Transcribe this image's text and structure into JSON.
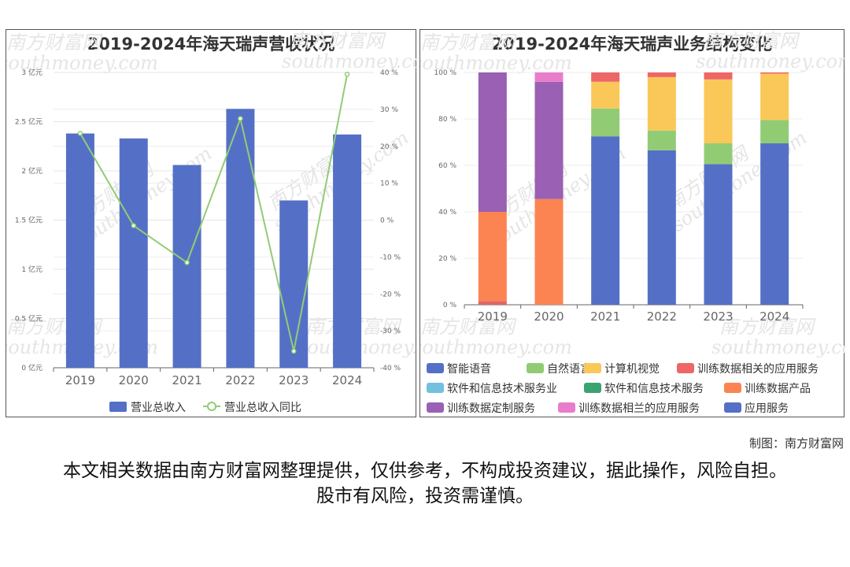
{
  "watermark": {
    "text": "南方财富网",
    "subtext": "southmoney.com"
  },
  "chart_data": [
    {
      "type": "bar+line",
      "title": "2019-2024年海天瑞声营收状况",
      "categories": [
        "2019",
        "2020",
        "2021",
        "2022",
        "2023",
        "2024"
      ],
      "series": [
        {
          "name": "营业总收入",
          "type": "bar",
          "axis": "left",
          "color": "#5470c6",
          "values": [
            2.38,
            2.33,
            2.06,
            2.63,
            1.7,
            2.37
          ]
        },
        {
          "name": "营业总收入同比",
          "type": "line",
          "axis": "right",
          "color": "#91cc75",
          "values": [
            23.5,
            -1.5,
            -11.5,
            27.5,
            -35.5,
            39.5
          ]
        }
      ],
      "left_axis": {
        "min": 0,
        "max": 3,
        "ticks": [
          "0 亿元",
          "0.5 亿元",
          "1 亿元",
          "1.5 亿元",
          "2 亿元",
          "2.5 亿元",
          "3 亿元"
        ]
      },
      "right_axis": {
        "min": -40,
        "max": 40,
        "ticks": [
          "-40 %",
          "-30 %",
          "-20 %",
          "-10 %",
          "0 %",
          "10 %",
          "20 %",
          "30 %",
          "40 %"
        ]
      },
      "legend_position": "bottom"
    },
    {
      "type": "stacked-bar",
      "title": "2019-2024年海天瑞声业务结构变化",
      "categories": [
        "2019",
        "2020",
        "2021",
        "2022",
        "2023",
        "2024"
      ],
      "y_axis": {
        "min": 0,
        "max": 100,
        "ticks": [
          "0 %",
          "20 %",
          "40 %",
          "60 %",
          "80 %",
          "100 %"
        ]
      },
      "series": [
        {
          "name": "智能语音",
          "color": "#5470c6",
          "values": [
            0,
            0,
            72.5,
            66.5,
            60.5,
            69.5
          ]
        },
        {
          "name": "自然语言",
          "color": "#91cc75",
          "values": [
            0,
            0,
            12,
            8.5,
            9,
            10
          ]
        },
        {
          "name": "计算机视觉",
          "color": "#fac858",
          "values": [
            0,
            0,
            11.5,
            23,
            27.5,
            20
          ]
        },
        {
          "name": "训练数据相关的应用服务",
          "color": "#ee6666",
          "values": [
            0,
            0,
            4,
            2,
            3,
            0.5
          ]
        },
        {
          "name": "软件和信息技术服务业",
          "color": "#73c0de",
          "values": [
            0,
            0,
            0,
            0,
            0,
            0
          ]
        },
        {
          "name": "软件和信息技术服务",
          "color": "#3ba272",
          "values": [
            0,
            0,
            0,
            0,
            0,
            0
          ]
        },
        {
          "name": "训练数据产品",
          "color": "#fc8452",
          "values": [
            38.5,
            45.5,
            0,
            0,
            0,
            0
          ]
        },
        {
          "name": "训练数据定制服务",
          "color": "#9a60b4",
          "values": [
            60,
            50.5,
            0,
            0,
            0,
            0
          ]
        },
        {
          "name": "训练数据相兰的应用服务",
          "color": "#ea7ccc",
          "values": [
            0,
            4,
            0,
            0,
            0,
            0
          ]
        },
        {
          "name": "应用服务",
          "color": "#5470c6",
          "values": [
            0,
            0,
            0,
            0,
            0,
            0
          ]
        },
        {
          "name": "",
          "color": "#e06666",
          "values": [
            1.5,
            0,
            0,
            0,
            0,
            0
          ]
        }
      ],
      "legend_position": "bottom"
    }
  ],
  "source_note": "制图：南方财富网",
  "disclaimer": "本文相关数据由南方财富网整理提供，仅供参考，不构成投资建议，据此操作，风险自担。股市有风险，投资需谨慎。"
}
